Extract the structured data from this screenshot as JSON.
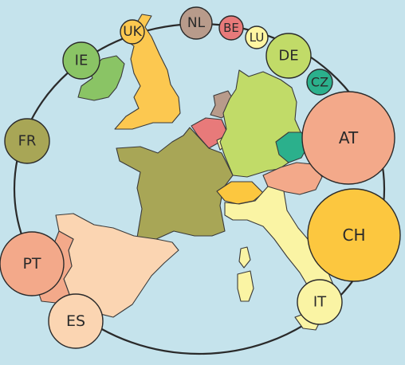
{
  "countries": [
    {
      "code": "UK",
      "color": "#fcc850"
    },
    {
      "code": "NL",
      "color": "#b89b8b"
    },
    {
      "code": "BE",
      "color": "#e87a7a"
    },
    {
      "code": "LU",
      "color": "#fff6a2"
    },
    {
      "code": "IE",
      "color": "#8ac465"
    },
    {
      "code": "DE",
      "color": "#c1db68"
    },
    {
      "code": "CZ",
      "color": "#2bb08c"
    },
    {
      "code": "FR",
      "color": "#a8a656"
    },
    {
      "code": "AT",
      "color": "#f3a98a"
    },
    {
      "code": "CH",
      "color": "#fcc73f"
    },
    {
      "code": "PT",
      "color": "#f3a98a"
    },
    {
      "code": "IT",
      "color": "#faf4a4"
    },
    {
      "code": "ES",
      "color": "#fbd5b2"
    }
  ],
  "colors": {
    "sea": "#c5e3ec",
    "ring": "#2a2a2a",
    "border": "#3a3a3a"
  }
}
